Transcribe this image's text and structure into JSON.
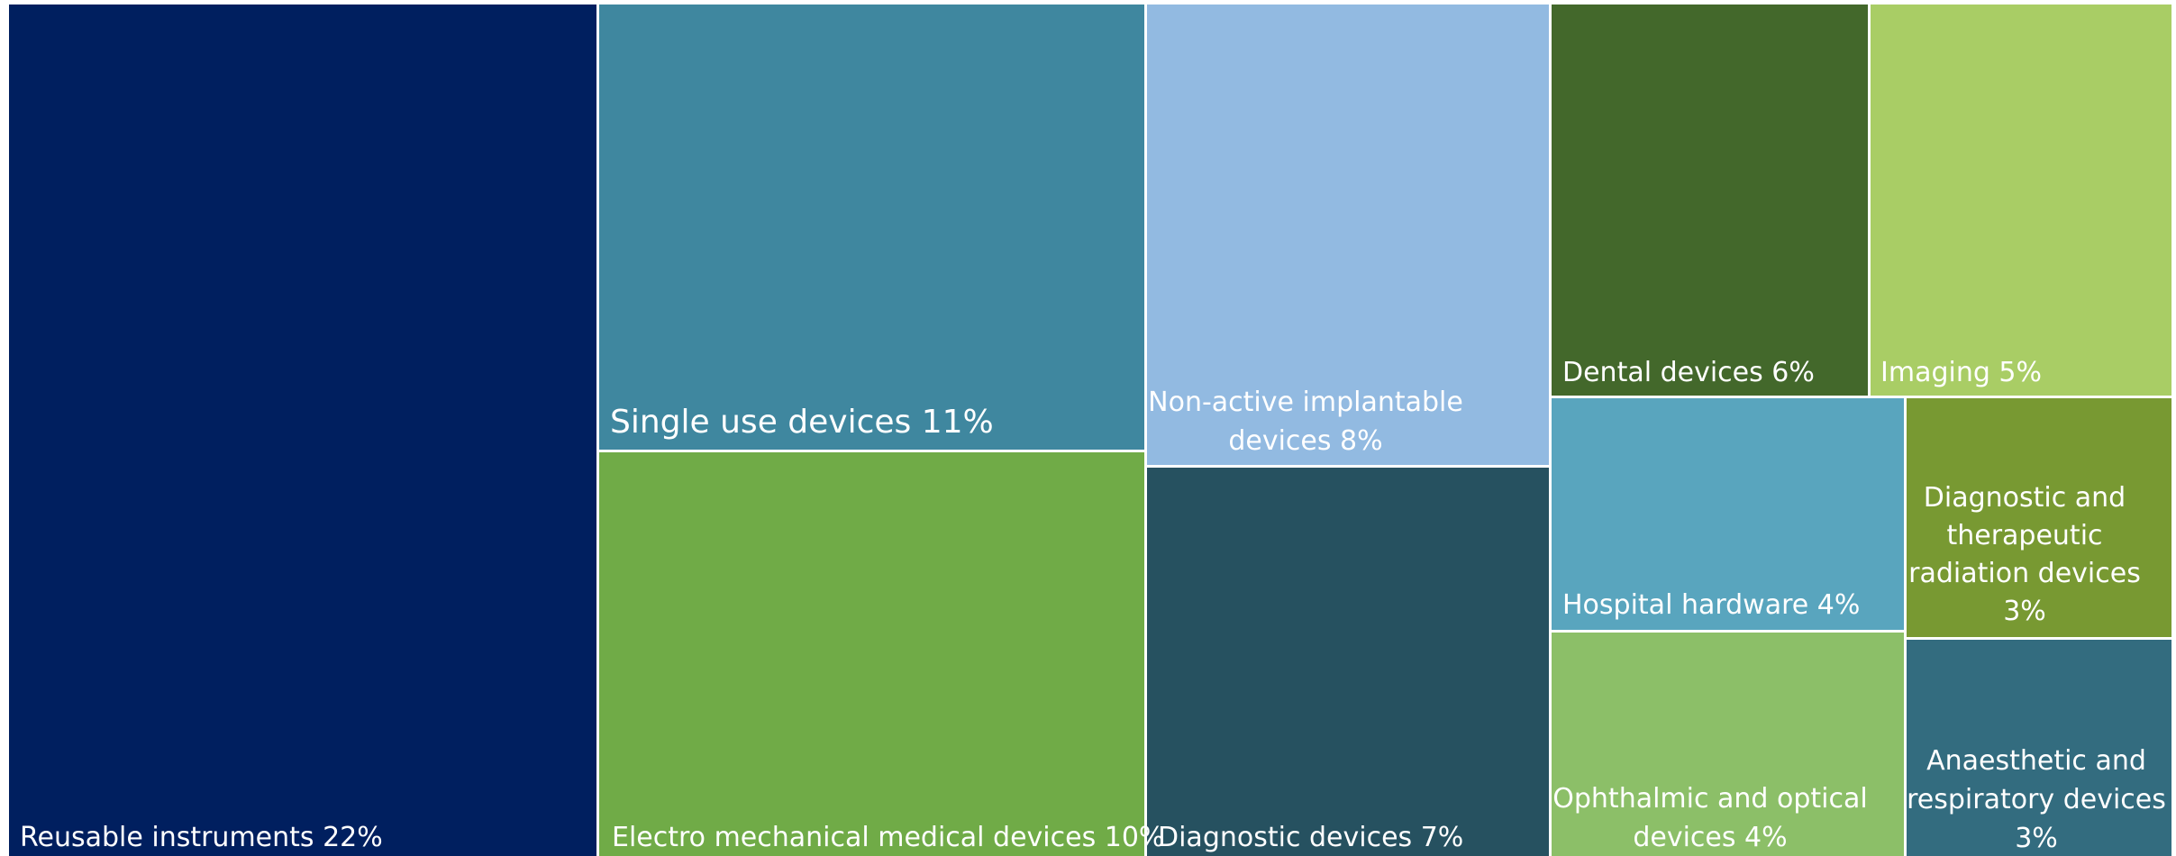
{
  "chart_data": {
    "type": "treemap",
    "unit": "%",
    "items": [
      {
        "label": "Reusable instruments 22%",
        "name": "Reusable instruments",
        "value": 22,
        "color": "#001F5F"
      },
      {
        "label": "Single use devices 11%",
        "name": "Single use devices",
        "value": 11,
        "color": "#3F879F"
      },
      {
        "label": "Electro mechanical medical devices 10%",
        "name": "Electro mechanical medical devices",
        "value": 10,
        "color": "#70AB47"
      },
      {
        "label": "Non-active implantable devices 8%",
        "name": "Non-active implantable devices",
        "value": 8,
        "color": "#92BAE1"
      },
      {
        "label": "Diagnostic devices 7%",
        "name": "Diagnostic devices",
        "value": 7,
        "color": "#265160"
      },
      {
        "label": "Dental devices 6%",
        "name": "Dental devices",
        "value": 6,
        "color": "#43682B"
      },
      {
        "label": "Imaging 5%",
        "name": "Imaging",
        "value": 5,
        "color": "#A9CD65"
      },
      {
        "label": "Hospital hardware 4%",
        "name": "Hospital hardware",
        "value": 4,
        "color": "#59A5BE"
      },
      {
        "label": "Diagnostic and therapeutic radiation devices 3%",
        "name": "Diagnostic and therapeutic radiation devices",
        "value": 3,
        "color": "#789932"
      },
      {
        "label": "Ophthalmic and optical devices 4%",
        "name": "Ophthalmic and optical devices",
        "value": 4,
        "color": "#8CBF68"
      },
      {
        "label": "Anaesthetic and respiratory devices 3%",
        "name": "Anaesthetic and respiratory devices",
        "value": 3,
        "color": "#336C7F"
      }
    ]
  }
}
